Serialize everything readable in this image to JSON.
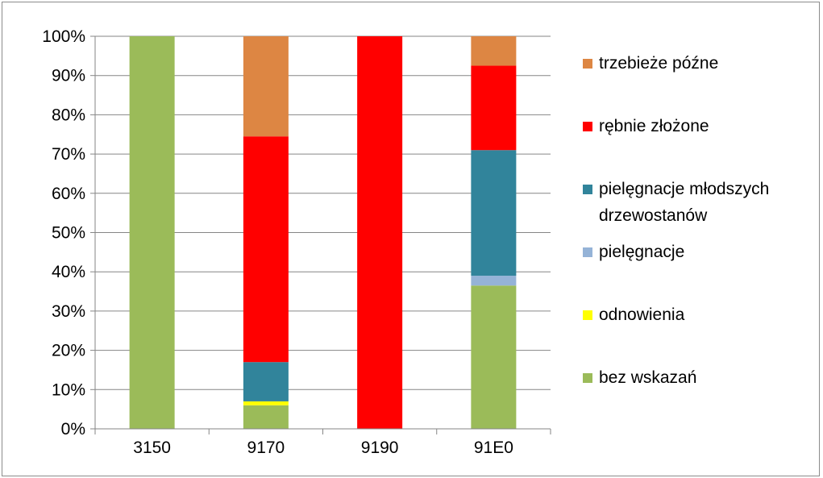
{
  "chart_data": {
    "type": "bar",
    "stacked": true,
    "percent_stacked": true,
    "categories": [
      "3150",
      "9170",
      "9190",
      "91E0"
    ],
    "series": [
      {
        "name": "bez wskazań",
        "color": "#9BBB59",
        "values": [
          100,
          6,
          0,
          36.5
        ]
      },
      {
        "name": "odnowienia",
        "color": "#FFFF00",
        "values": [
          0,
          1,
          0,
          0
        ]
      },
      {
        "name": "pielęgnacje",
        "color": "#95B3D7",
        "values": [
          0,
          0,
          0,
          2.5
        ]
      },
      {
        "name": "pielęgnacje młodszych drzewostanów",
        "color": "#31849B",
        "values": [
          0,
          10,
          0,
          32
        ]
      },
      {
        "name": "rębnie złożone",
        "color": "#FF0000",
        "values": [
          0,
          57.5,
          100,
          21.5
        ]
      },
      {
        "name": "trzebieże późne",
        "color": "#DD8643",
        "values": [
          0,
          25.5,
          0,
          7.5
        ]
      }
    ],
    "y_ticks": [
      "0%",
      "10%",
      "20%",
      "30%",
      "40%",
      "50%",
      "60%",
      "70%",
      "80%",
      "90%",
      "100%"
    ],
    "ylim": [
      0,
      100
    ],
    "grid": true,
    "legend_position": "right",
    "title": "",
    "xlabel": "",
    "ylabel": ""
  }
}
